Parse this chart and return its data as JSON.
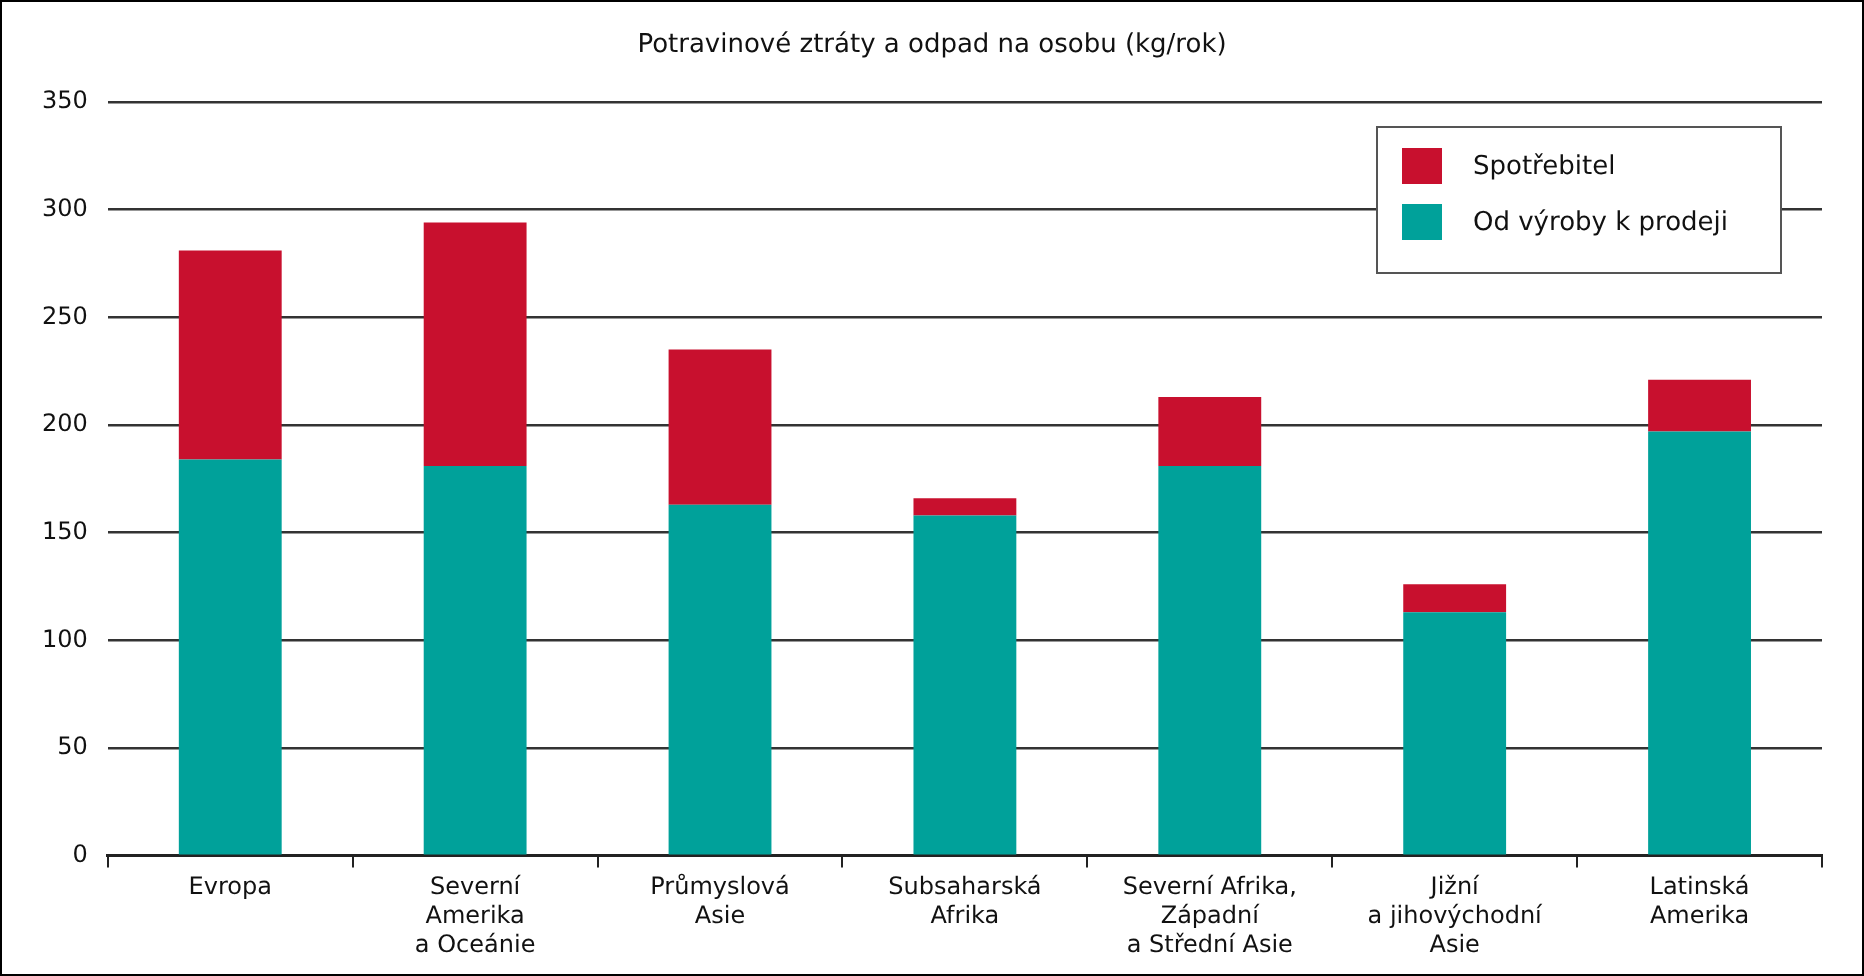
{
  "chart_data": {
    "type": "bar",
    "title": "Potravinové ztráty a odpad na osobu (kg/rok)",
    "categories": [
      "Evropa",
      "Severní\nAmerika\na Oceánie",
      "Průmyslová\nAsie",
      "Subsaharská\nAfrika",
      "Severní Afrika,\nZápadní\na Střední Asie",
      "Jižní\na jihovýchodní\nAsie",
      "Latinská\nAmerika"
    ],
    "series": [
      {
        "name": "Od výroby k prodeji",
        "color": "#00a19a",
        "values": [
          184,
          181,
          163,
          158,
          181,
          113,
          197
        ]
      },
      {
        "name": "Spotřebitel",
        "color": "#c8102e",
        "values": [
          97,
          113,
          72,
          8,
          32,
          13,
          24
        ]
      }
    ],
    "stacked": true,
    "ylim": [
      0,
      350
    ],
    "yticks": [
      0,
      50,
      100,
      150,
      200,
      250,
      300,
      350
    ],
    "grid": "y",
    "legend": "top right"
  }
}
